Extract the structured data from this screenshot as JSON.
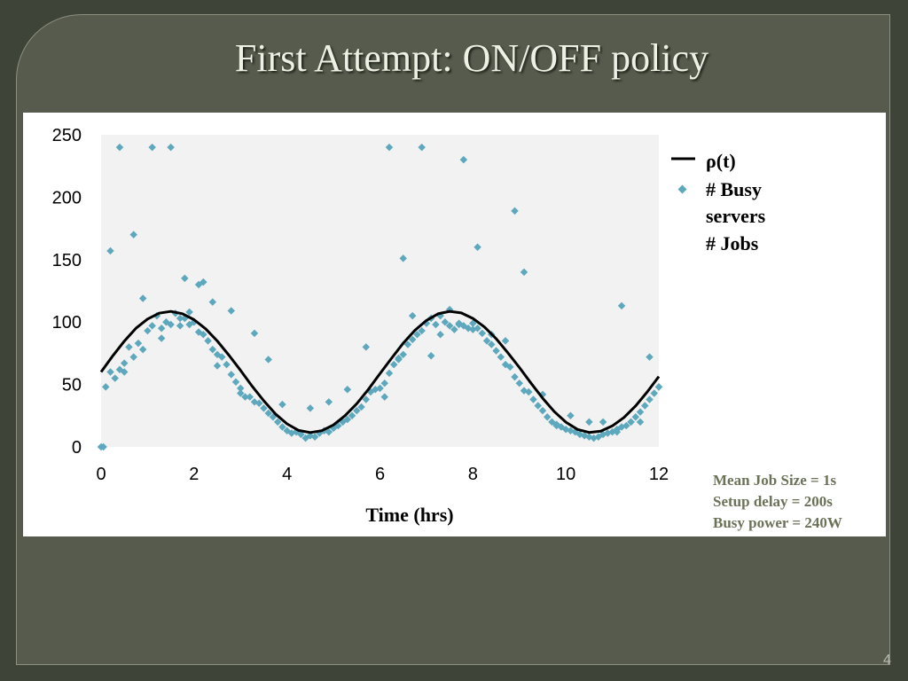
{
  "slide": {
    "title": "First Attempt: ON/OFF policy",
    "page_number": "4",
    "notes": [
      "Mean Job Size = 1s",
      "Setup delay = 200s",
      "Busy power = 240W"
    ]
  },
  "colors": {
    "background": "#3f4438",
    "panel": "#565b4d",
    "curve": "#000000",
    "points": "#5ea8bd",
    "notes": "#6b7258"
  },
  "chart_data": {
    "type": "scatter",
    "xlabel": "Time (hrs)",
    "ylabel": "",
    "xlim": [
      0,
      12
    ],
    "ylim": [
      0,
      250
    ],
    "x_ticks": [
      0,
      2,
      4,
      6,
      8,
      10,
      12
    ],
    "y_ticks": [
      0,
      50,
      100,
      150,
      200,
      250
    ],
    "grid": false,
    "legend_position": "right",
    "legend": [
      "ρ(t)",
      "# Busy servers",
      "# Jobs"
    ],
    "series": [
      {
        "name": "ρ(t)",
        "kind": "line",
        "x": [
          0,
          0.25,
          0.5,
          0.75,
          1,
          1.25,
          1.5,
          1.75,
          2,
          2.25,
          2.5,
          2.75,
          3,
          3.25,
          3.5,
          3.75,
          4,
          4.25,
          4.5,
          4.75,
          5,
          5.25,
          5.5,
          5.75,
          6,
          6.25,
          6.5,
          6.75,
          7,
          7.25,
          7.5,
          7.75,
          8,
          8.25,
          8.5,
          8.75,
          9,
          9.25,
          9.5,
          9.75,
          10,
          10.25,
          10.5,
          10.75,
          11,
          11.25,
          11.5,
          11.75,
          12
        ],
        "y": [
          60,
          72.9,
          84.7,
          95,
          102.4,
          107.1,
          108.5,
          106.7,
          101.9,
          94.6,
          84.9,
          73.5,
          61.3,
          48.6,
          36.9,
          26.4,
          18.5,
          13.2,
          11.5,
          13,
          17.6,
          25.1,
          34.6,
          46,
          58.7,
          71,
          83,
          93.3,
          101.3,
          106.6,
          108.6,
          107.3,
          102.9,
          96,
          86.7,
          75.5,
          63.6,
          51,
          39,
          28.3,
          19.8,
          14,
          11.6,
          12.6,
          16.8,
          23.6,
          32.8,
          44,
          56.4
        ]
      },
      {
        "name": "# Busy servers",
        "kind": "scatter",
        "x": [
          0,
          0.1,
          0.2,
          0.3,
          0.4,
          0.5,
          0.6,
          0.7,
          0.8,
          0.9,
          1,
          1.1,
          1.2,
          1.3,
          1.4,
          1.5,
          1.6,
          1.7,
          1.8,
          1.9,
          2,
          2.1,
          2.2,
          2.3,
          2.4,
          2.5,
          2.6,
          2.7,
          2.8,
          2.9,
          3,
          3.1,
          3.2,
          3.3,
          3.4,
          3.5,
          3.6,
          3.7,
          3.8,
          3.9,
          4,
          4.1,
          4.2,
          4.3,
          4.4,
          4.5,
          4.6,
          4.7,
          4.8,
          4.9,
          5,
          5.1,
          5.2,
          5.3,
          5.4,
          5.5,
          5.6,
          5.7,
          5.8,
          5.9,
          6,
          6.1,
          6.2,
          6.3,
          6.4,
          6.5,
          6.6,
          6.7,
          6.8,
          6.9,
          7,
          7.1,
          7.2,
          7.3,
          7.4,
          7.5,
          7.6,
          7.7,
          7.8,
          7.9,
          8,
          8.1,
          8.2,
          8.3,
          8.4,
          8.5,
          8.6,
          8.7,
          8.8,
          8.9,
          9,
          9.1,
          9.2,
          9.3,
          9.4,
          9.5,
          9.6,
          9.7,
          9.8,
          9.9,
          10,
          10.1,
          10.2,
          10.3,
          10.4,
          10.5,
          10.6,
          10.7,
          10.8,
          10.9,
          11,
          11.1,
          11.2,
          11.3,
          11.4,
          11.5,
          11.6,
          11.7,
          11.8,
          11.9,
          12
        ],
        "y": [
          0,
          48,
          60,
          55,
          62,
          67,
          80,
          72,
          83,
          78,
          93,
          97,
          105,
          95,
          100,
          98,
          107,
          97,
          103,
          98,
          100,
          92,
          90,
          85,
          78,
          74,
          72,
          66,
          58,
          52,
          47,
          40,
          40,
          36,
          35,
          31,
          27,
          24,
          20,
          16,
          13,
          11,
          12,
          10,
          7,
          9,
          8,
          11,
          13,
          12,
          15,
          17,
          20,
          22,
          25,
          29,
          32,
          38,
          44,
          46,
          47,
          51,
          59,
          66,
          71,
          74,
          82,
          86,
          90,
          93,
          99,
          103,
          98,
          105,
          100,
          97,
          94,
          99,
          97,
          95,
          99,
          95,
          91,
          85,
          82,
          77,
          72,
          66,
          64,
          56,
          51,
          45,
          44,
          38,
          33,
          29,
          24,
          20,
          17,
          16,
          14,
          13,
          12,
          10,
          9,
          8,
          7,
          8,
          10,
          11,
          12,
          14,
          16,
          17,
          20,
          24,
          28,
          33,
          38,
          43,
          48
        ]
      },
      {
        "name": "# Jobs",
        "kind": "scatter",
        "x": [
          0.05,
          0.2,
          0.4,
          0.5,
          0.7,
          0.9,
          1.1,
          1.3,
          1.5,
          1.7,
          1.8,
          1.9,
          2.1,
          2.2,
          2.4,
          2.5,
          2.8,
          3,
          3.3,
          3.6,
          3.9,
          4.2,
          4.5,
          4.9,
          5.3,
          5.7,
          6.1,
          6.2,
          6.4,
          6.5,
          6.7,
          6.9,
          7.1,
          7.3,
          7.5,
          7.7,
          7.8,
          8,
          8.1,
          8.4,
          8.7,
          8.9,
          9.1,
          9.5,
          9.8,
          10.1,
          10.5,
          10.8,
          11.1,
          11.2,
          11.4,
          11.6,
          11.8,
          12
        ],
        "y": [
          0,
          157,
          240,
          60,
          170,
          119,
          240,
          87,
          240,
          103,
          135,
          108,
          130,
          132,
          116,
          65,
          109,
          43,
          91,
          70,
          34,
          12,
          31,
          36,
          46,
          80,
          40,
          240,
          70,
          151,
          105,
          240,
          73,
          90,
          110,
          98,
          230,
          94,
          160,
          90,
          85,
          189,
          140,
          42,
          18,
          25,
          20,
          20,
          12,
          113,
          20,
          20,
          72,
          48
        ]
      }
    ]
  }
}
